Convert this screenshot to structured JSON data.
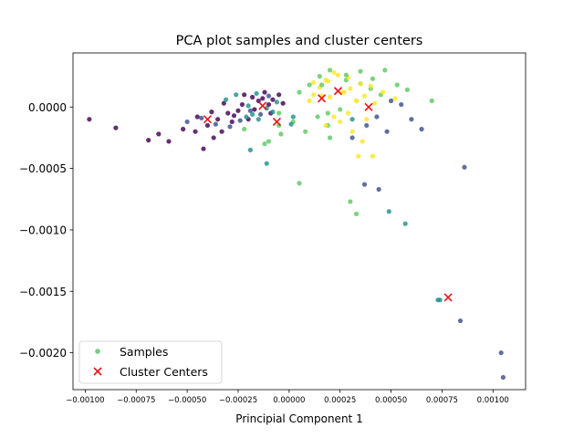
{
  "chart_data": {
    "type": "scatter",
    "title": "PCA plot samples and cluster centers",
    "xlabel": "Principial Component 1",
    "ylabel": "",
    "xlim": [
      -0.00106,
      0.00116
    ],
    "ylim": [
      -0.0023,
      0.00044
    ],
    "xticks": [
      -0.001,
      -0.00075,
      -0.0005,
      -0.00025,
      0.0,
      0.00025,
      0.0005,
      0.00075,
      0.001
    ],
    "xtick_labels": [
      "−0.00100",
      "−0.00075",
      "−0.00050",
      "−0.00025",
      "0.00000",
      "0.00025",
      "0.00050",
      "0.00075",
      "0.00100"
    ],
    "yticks": [
      0.0,
      -0.0005,
      -0.001,
      -0.0015,
      -0.002
    ],
    "ytick_labels": [
      "0.0000",
      "−0.0005",
      "−0.0010",
      "−0.0015",
      "−0.0020"
    ],
    "grid": false,
    "legend": {
      "placement": "lower-left",
      "entries": [
        {
          "label": "Samples",
          "marker": "circle",
          "color": "#5cc36e"
        },
        {
          "label": "Cluster Centers",
          "marker": "x",
          "color": "#e8141a"
        }
      ]
    },
    "colors": {
      "palette": [
        "#440154",
        "#3b528b",
        "#21918c",
        "#5ec962",
        "#fde725"
      ],
      "centers": "#e8141a"
    },
    "series": [
      {
        "name": "Samples",
        "x": [
          -0.00098,
          -0.00085,
          -0.00069,
          -0.00064,
          -0.00059,
          -0.00052,
          -0.00046,
          -0.00042,
          -0.0004,
          -0.00037,
          -0.00035,
          -0.00033,
          -0.0003,
          -0.00028,
          -0.00025,
          -0.00023,
          -0.0002,
          -0.00018,
          -0.00015,
          -0.00012,
          -0.0001,
          -8e-05,
          -5e-05,
          -3e-05,
          -0.00045,
          -0.00038,
          -0.00032,
          -0.00027,
          -0.00022,
          -0.00017,
          -0.00013,
          -9e-05,
          -0.0005,
          -0.00043,
          -0.00036,
          -0.00029,
          -0.00024,
          -0.00019,
          -0.00014,
          -0.0001,
          -0.00031,
          -0.00026,
          -0.00021,
          -0.00016,
          -0.00011,
          -6e-05,
          5e-05,
          0.0001,
          0.00015,
          0.0002,
          0.00028,
          0.00035,
          0.0004,
          0.00045,
          0.0005,
          0.00055,
          0.0006,
          0.00065,
          0.00031,
          0.00038,
          0.00043,
          0.00048,
          0.0002,
          0.00026,
          0.00033,
          0.00012,
          0.00018,
          0.0003,
          0.00037,
          0.00042,
          -0.00022,
          -0.00012,
          -5e-05,
          2e-05,
          8e-05,
          0.00014,
          0.00019,
          0.00025,
          0.0001,
          0.00016,
          0.00022,
          0.00029,
          0.00035,
          0.0004,
          0.00046,
          0.00052,
          -0.00015,
          -8e-05,
          1e-05,
          -0.0002,
          -0.00018,
          0.00028,
          0.00035,
          0.00041,
          0.00047,
          0.00053,
          0.00058,
          0.00036,
          0.00041,
          0.00034,
          0.00018,
          0.00022,
          0.00025,
          0.00029,
          0.00031,
          0.00012,
          0.00015,
          0.00019,
          0.00024,
          0.00027,
          0.00033,
          0.00038,
          5e-05,
          0.0003,
          0.00033,
          0.00044,
          0.00037,
          -0.00019,
          -0.00011,
          -0.0001,
          -5e-05,
          -4e-05,
          2e-05,
          0.0002,
          0.00031,
          0.00049,
          0.00057,
          0.00073,
          0.0007,
          0.00086,
          0.00104,
          0.00105,
          0.00074,
          0.00084,
          0.00016,
          0.00019
        ],
        "y": [
          -0.0001,
          -0.00017,
          -0.00027,
          -0.00022,
          -0.00028,
          -0.00018,
          -0.0002,
          -0.00034,
          -0.00015,
          -0.00025,
          -0.0001,
          -0.0002,
          -5e-05,
          -0.00012,
          -3e-05,
          2e-05,
          -0.0001,
          8e-05,
          5e-05,
          0.00012,
          2e-05,
          6e-05,
          0.0001,
          3e-05,
          -8e-05,
          -4e-05,
          3e-05,
          -7e-05,
          0.0001,
          -2e-05,
          7e-05,
          -5e-05,
          -0.00012,
          -9e-05,
          -0.00014,
          -0.00016,
          -0.00011,
          -3e-05,
          -6e-05,
          9e-05,
          6e-05,
          0.0001,
          -8e-05,
          0.00011,
          -1e-05,
          4e-05,
          0.00012,
          0.00018,
          0.00025,
          0.0003,
          0.00022,
          0.00019,
          0.00015,
          0.0001,
          5e-05,
          2e-05,
          -0.0001,
          -0.00018,
          -0.00025,
          -0.00015,
          -8e-05,
          -0.0002,
          8e-05,
          0.00012,
          5e-05,
          0.0002,
          0.00022,
          0.00015,
          9e-05,
          3e-05,
          -0.00018,
          -0.0003,
          -5e-05,
          -0.00012,
          -0.0002,
          -8e-05,
          -0.00015,
          -2e-05,
          5e-05,
          9e-05,
          0.00028,
          0.00024,
          0.00019,
          0.00017,
          0.00012,
          7e-05,
          -0.0001,
          -4e-05,
          -0.00014,
          1e-05,
          -6e-05,
          0.00026,
          0.00029,
          0.00023,
          0.0003,
          0.00018,
          0.00014,
          -0.00028,
          -0.0004,
          -0.0004,
          -0.00015,
          -8e-05,
          -0.00012,
          -5e-05,
          -0.0002,
          0.0001,
          0.00016,
          0.00021,
          0.00026,
          0.00012,
          5e-05,
          -0.0001,
          -0.00062,
          -0.00077,
          -0.00087,
          -0.00067,
          -0.00063,
          -0.00035,
          -0.00046,
          -0.00028,
          -0.00015,
          -0.00022,
          -8e-05,
          -0.00025,
          -0.0001,
          -0.00085,
          -0.00095,
          -0.00157,
          5e-05,
          -0.00049,
          -0.002,
          -0.0022,
          -0.00157,
          -0.00174,
          0.00018,
          -5e-05
        ],
        "cluster": [
          0,
          0,
          0,
          0,
          0,
          0,
          0,
          0,
          0,
          0,
          0,
          0,
          0,
          0,
          0,
          0,
          0,
          0,
          0,
          0,
          0,
          0,
          0,
          0,
          0,
          0,
          0,
          0,
          0,
          0,
          0,
          0,
          1,
          1,
          1,
          1,
          1,
          1,
          1,
          1,
          2,
          2,
          2,
          2,
          2,
          2,
          3,
          3,
          3,
          3,
          3,
          3,
          3,
          3,
          1,
          1,
          1,
          1,
          1,
          1,
          1,
          1,
          4,
          4,
          4,
          4,
          4,
          4,
          4,
          4,
          3,
          3,
          3,
          3,
          3,
          3,
          3,
          3,
          4,
          4,
          4,
          4,
          4,
          4,
          4,
          4,
          2,
          2,
          2,
          2,
          2,
          3,
          3,
          3,
          3,
          3,
          3,
          4,
          4,
          4,
          4,
          4,
          4,
          4,
          4,
          4,
          4,
          4,
          4,
          4,
          4,
          4,
          3,
          3,
          3,
          1,
          1,
          2,
          2,
          3,
          3,
          3,
          2,
          3,
          2,
          2,
          2,
          2,
          3,
          1,
          1,
          1,
          2,
          1,
          3,
          3
        ]
      },
      {
        "name": "Cluster Centers",
        "x": [
          -0.0004,
          -0.00013,
          -6e-05,
          0.00016,
          0.00024,
          0.00039,
          0.00078
        ],
        "y": [
          -0.0001,
          1e-05,
          -0.00012,
          7e-05,
          0.00013,
          0.0,
          -0.00155
        ]
      }
    ]
  }
}
